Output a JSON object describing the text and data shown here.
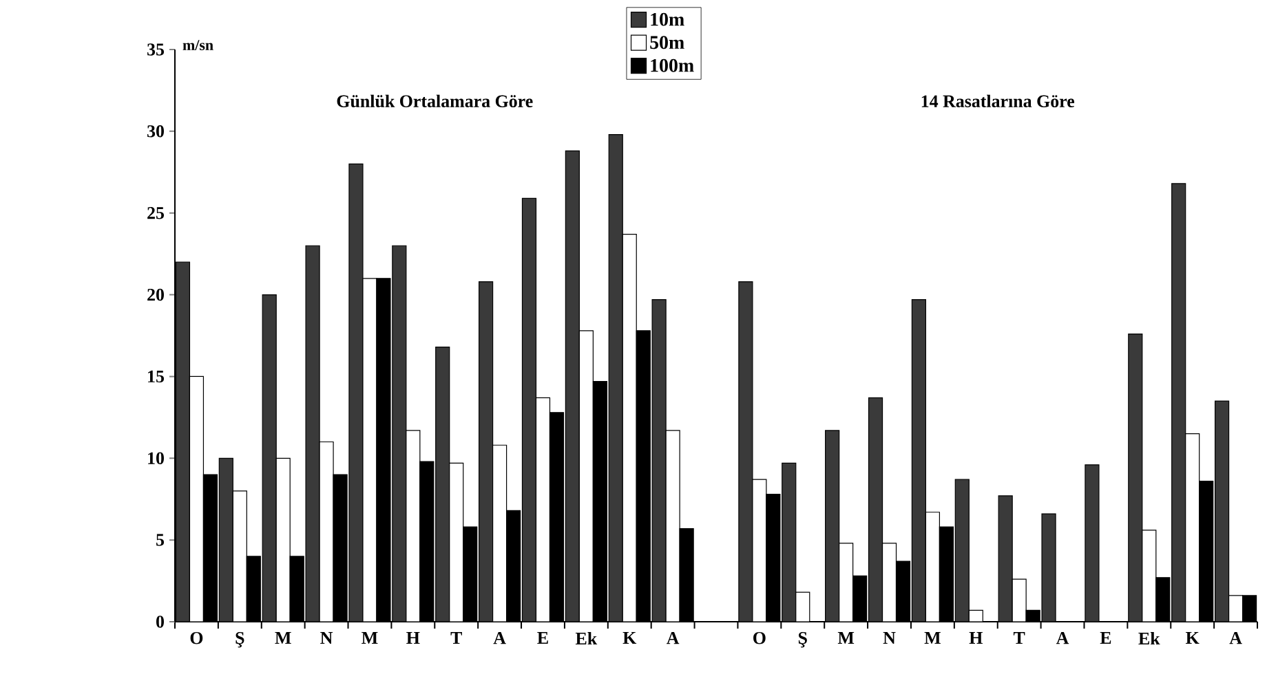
{
  "chart_data": {
    "type": "bar",
    "ylabel": "m/sn",
    "annotations": [
      "Günlük Ortalamara Göre",
      "14 Rasatlarına Göre"
    ],
    "categories": [
      "O",
      "Ş",
      "M",
      "N",
      "M",
      "H",
      "T",
      "A",
      "E",
      "Ek",
      "K",
      "A",
      null,
      "O",
      "Ş",
      "M",
      "N",
      "M",
      "H",
      "T",
      "A",
      "E",
      "Ek",
      "K",
      "A"
    ],
    "series": [
      {
        "name": "10m",
        "color": "#3a3a3a",
        "values": [
          22,
          10,
          20,
          23,
          28,
          23,
          16.8,
          20.8,
          25.9,
          28.8,
          29.8,
          19.7,
          null,
          20.8,
          9.7,
          11.7,
          13.7,
          19.7,
          8.7,
          7.7,
          6.6,
          9.6,
          17.6,
          26.8,
          13.5
        ]
      },
      {
        "name": "50m",
        "color": "#ffffff",
        "values": [
          15,
          8,
          10,
          11,
          21,
          11.7,
          9.7,
          10.8,
          13.7,
          17.8,
          23.7,
          11.7,
          null,
          8.7,
          1.8,
          4.8,
          4.8,
          6.7,
          0.7,
          2.6,
          null,
          null,
          5.6,
          11.5,
          1.6
        ]
      },
      {
        "name": "100m",
        "color": "#000000",
        "values": [
          9,
          4,
          4,
          9,
          21,
          9.8,
          5.8,
          6.8,
          12.8,
          14.7,
          17.8,
          5.7,
          null,
          7.8,
          null,
          2.8,
          3.7,
          5.8,
          null,
          0.7,
          null,
          null,
          2.7,
          8.6,
          1.6
        ]
      }
    ],
    "ylim": [
      0,
      35
    ],
    "yticks": [
      0,
      5,
      10,
      15,
      20,
      25,
      30,
      35
    ],
    "legend": "top",
    "grid": false
  }
}
